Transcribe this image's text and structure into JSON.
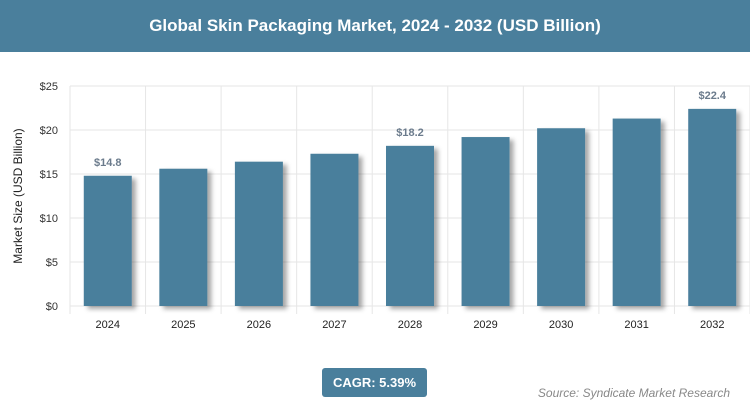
{
  "title": "Global Skin Packaging Market, 2024 - 2032 (USD Billion)",
  "cagr": "CAGR: 5.39%",
  "source": "Source: Syndicate Market Research",
  "colors": {
    "bar": "#4a7f9c",
    "header": "#4a7f9c",
    "label": "#6b7b8c"
  },
  "chart_data": {
    "type": "bar",
    "title": "Global Skin Packaging Market, 2024 - 2032 (USD Billion)",
    "xlabel": "",
    "ylabel": "Market Size (USD Billion)",
    "categories": [
      "2024",
      "2025",
      "2026",
      "2027",
      "2028",
      "2029",
      "2030",
      "2031",
      "2032"
    ],
    "values": [
      14.8,
      15.6,
      16.4,
      17.3,
      18.2,
      19.2,
      20.2,
      21.3,
      22.4
    ],
    "data_labels": {
      "2024": "$14.8",
      "2028": "$18.2",
      "2032": "$22.4"
    },
    "ylim": [
      0,
      25
    ],
    "yticks": [
      0,
      5,
      10,
      15,
      20,
      25
    ],
    "ytick_labels": [
      "$0",
      "$5",
      "$10",
      "$15",
      "$20",
      "$25"
    ],
    "grid": true,
    "legend": "none"
  }
}
